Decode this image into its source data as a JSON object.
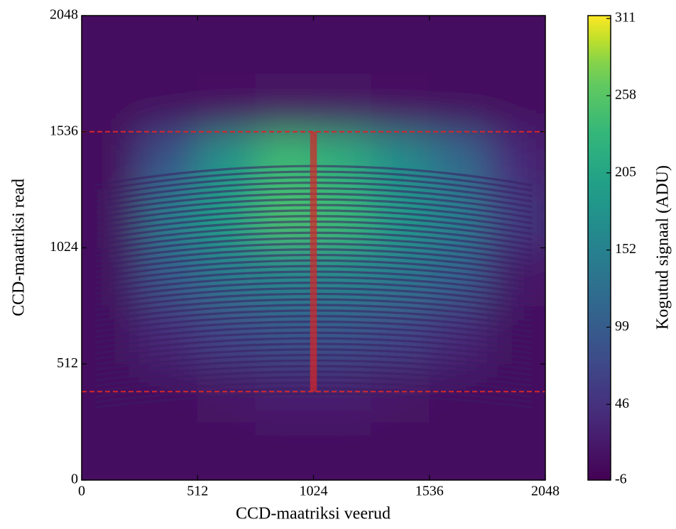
{
  "chart_data": {
    "type": "heatmap",
    "xlabel": "CCD-maatriksi veerud",
    "ylabel": "CCD-maatriksi read",
    "colorbar_label": "Kogutud signaal (ADU)",
    "xlim": [
      0,
      2048
    ],
    "ylim": [
      0,
      2048
    ],
    "xticks": [
      0,
      512,
      1024,
      1536,
      2048
    ],
    "yticks": [
      0,
      512,
      1024,
      1536,
      2048
    ],
    "clim": [
      -6,
      313
    ],
    "cticks": [
      -6,
      46,
      99,
      152,
      205,
      258,
      311
    ],
    "xbins": [
      0,
      256,
      512,
      768,
      1024,
      1280,
      1536,
      1792,
      2048
    ],
    "ybins": [
      0,
      256,
      512,
      768,
      1024,
      1280,
      1536,
      1792,
      2048
    ],
    "z": [
      [
        5,
        5,
        5,
        5,
        5,
        5,
        5,
        5
      ],
      [
        5,
        8,
        15,
        25,
        25,
        15,
        8,
        5
      ],
      [
        5,
        40,
        70,
        90,
        90,
        70,
        40,
        5
      ],
      [
        5,
        100,
        140,
        160,
        160,
        140,
        110,
        20
      ],
      [
        5,
        150,
        200,
        250,
        240,
        190,
        150,
        60
      ],
      [
        5,
        90,
        180,
        240,
        220,
        170,
        120,
        40
      ],
      [
        5,
        8,
        10,
        12,
        12,
        10,
        8,
        5
      ],
      [
        5,
        5,
        5,
        5,
        5,
        5,
        5,
        5
      ]
    ],
    "hlines": [
      390,
      1536
    ],
    "vspan": {
      "x": 1024,
      "width": 30,
      "ylim": [
        390,
        1536
      ]
    },
    "annotation_color": "#d62728"
  }
}
